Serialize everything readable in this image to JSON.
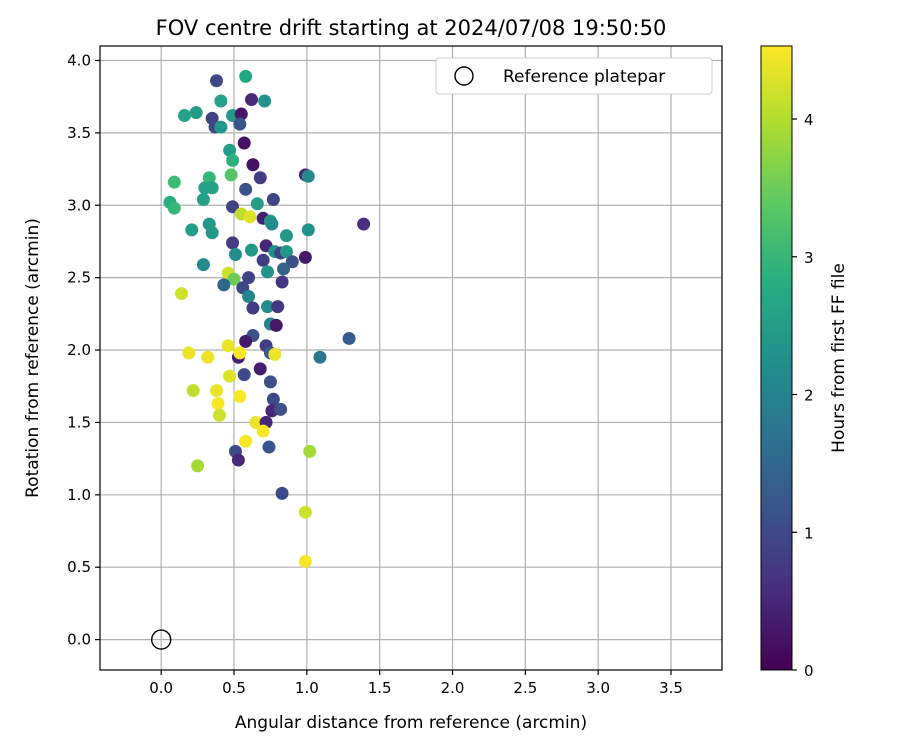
{
  "chart_data": {
    "type": "scatter",
    "title": "FOV centre drift starting at 2024/07/08 19:50:50",
    "xlabel": "Angular distance from reference (arcmin)",
    "ylabel": "Rotation from reference (arcmin)",
    "xlim": [
      -0.42,
      3.85
    ],
    "ylim": [
      -0.21,
      4.1
    ],
    "grid": true,
    "x_ticks": [
      "0.0",
      "0.5",
      "1.0",
      "1.5",
      "2.0",
      "2.5",
      "3.0",
      "3.5"
    ],
    "y_ticks": [
      "0.0",
      "0.5",
      "1.0",
      "1.5",
      "2.0",
      "2.5",
      "3.0",
      "3.5",
      "4.0"
    ],
    "legend": {
      "position": "top-right",
      "label": "Reference platepar"
    },
    "reference_point": {
      "x": 0.0,
      "y": 0.0,
      "label": "Reference platepar"
    },
    "colorbar": {
      "label": "Hours from first FF file",
      "range": [
        0,
        4.53
      ],
      "ticks": [
        "0",
        "1",
        "2",
        "3",
        "4"
      ],
      "colormap": "viridis"
    },
    "points": [
      {
        "x": 0.38,
        "y": 3.86,
        "t": 1.0
      },
      {
        "x": 0.58,
        "y": 3.89,
        "t": 2.7
      },
      {
        "x": 0.71,
        "y": 3.72,
        "t": 2.3
      },
      {
        "x": 0.41,
        "y": 3.72,
        "t": 2.6
      },
      {
        "x": 0.16,
        "y": 3.62,
        "t": 2.6
      },
      {
        "x": 0.24,
        "y": 3.64,
        "t": 2.5
      },
      {
        "x": 0.49,
        "y": 3.62,
        "t": 2.4
      },
      {
        "x": 0.55,
        "y": 3.63,
        "t": 0.3
      },
      {
        "x": 0.62,
        "y": 3.73,
        "t": 0.5
      },
      {
        "x": 0.35,
        "y": 3.6,
        "t": 0.9
      },
      {
        "x": 0.37,
        "y": 3.54,
        "t": 1.0
      },
      {
        "x": 0.41,
        "y": 3.54,
        "t": 2.4
      },
      {
        "x": 0.54,
        "y": 3.56,
        "t": 1.2
      },
      {
        "x": 0.57,
        "y": 3.43,
        "t": 0.2
      },
      {
        "x": 0.47,
        "y": 3.38,
        "t": 2.5
      },
      {
        "x": 0.49,
        "y": 3.31,
        "t": 2.9
      },
      {
        "x": 0.63,
        "y": 3.28,
        "t": 0.2
      },
      {
        "x": 0.48,
        "y": 3.21,
        "t": 3.3
      },
      {
        "x": 0.68,
        "y": 3.19,
        "t": 0.8
      },
      {
        "x": 0.99,
        "y": 3.21,
        "t": 0.5
      },
      {
        "x": 1.01,
        "y": 3.2,
        "t": 2.1
      },
      {
        "x": 0.09,
        "y": 3.16,
        "t": 3.1
      },
      {
        "x": 0.33,
        "y": 3.19,
        "t": 3.0
      },
      {
        "x": 0.3,
        "y": 3.12,
        "t": 2.6
      },
      {
        "x": 0.35,
        "y": 3.12,
        "t": 2.6
      },
      {
        "x": 0.58,
        "y": 3.11,
        "t": 1.1
      },
      {
        "x": 0.29,
        "y": 3.04,
        "t": 2.6
      },
      {
        "x": 0.06,
        "y": 3.02,
        "t": 2.8
      },
      {
        "x": 0.09,
        "y": 2.98,
        "t": 3.0
      },
      {
        "x": 0.49,
        "y": 2.99,
        "t": 0.9
      },
      {
        "x": 0.77,
        "y": 3.04,
        "t": 0.9
      },
      {
        "x": 0.66,
        "y": 3.01,
        "t": 2.5
      },
      {
        "x": 0.55,
        "y": 2.94,
        "t": 4.1
      },
      {
        "x": 0.61,
        "y": 2.92,
        "t": 4.3
      },
      {
        "x": 0.7,
        "y": 2.91,
        "t": 0.4
      },
      {
        "x": 0.75,
        "y": 2.89,
        "t": 2.4
      },
      {
        "x": 0.76,
        "y": 2.87,
        "t": 2.2
      },
      {
        "x": 1.01,
        "y": 2.83,
        "t": 2.3
      },
      {
        "x": 1.39,
        "y": 2.87,
        "t": 0.6
      },
      {
        "x": 0.33,
        "y": 2.87,
        "t": 2.4
      },
      {
        "x": 0.21,
        "y": 2.83,
        "t": 2.5
      },
      {
        "x": 0.35,
        "y": 2.81,
        "t": 2.4
      },
      {
        "x": 0.86,
        "y": 2.79,
        "t": 2.4
      },
      {
        "x": 0.49,
        "y": 2.74,
        "t": 0.8
      },
      {
        "x": 0.72,
        "y": 2.72,
        "t": 0.5
      },
      {
        "x": 0.62,
        "y": 2.69,
        "t": 2.4
      },
      {
        "x": 0.78,
        "y": 2.68,
        "t": 2.3
      },
      {
        "x": 0.82,
        "y": 2.67,
        "t": 0.9
      },
      {
        "x": 0.86,
        "y": 2.68,
        "t": 2.4
      },
      {
        "x": 0.99,
        "y": 2.64,
        "t": 0.3
      },
      {
        "x": 0.51,
        "y": 2.66,
        "t": 2.2
      },
      {
        "x": 0.7,
        "y": 2.62,
        "t": 0.8
      },
      {
        "x": 0.9,
        "y": 2.61,
        "t": 1.1
      },
      {
        "x": 0.29,
        "y": 2.59,
        "t": 2.1
      },
      {
        "x": 0.84,
        "y": 2.56,
        "t": 1.4
      },
      {
        "x": 0.73,
        "y": 2.54,
        "t": 2.3
      },
      {
        "x": 0.46,
        "y": 2.53,
        "t": 4.2
      },
      {
        "x": 0.6,
        "y": 2.5,
        "t": 0.9
      },
      {
        "x": 0.5,
        "y": 2.49,
        "t": 3.5
      },
      {
        "x": 0.83,
        "y": 2.47,
        "t": 0.7
      },
      {
        "x": 0.43,
        "y": 2.45,
        "t": 1.5
      },
      {
        "x": 0.56,
        "y": 2.43,
        "t": 1.0
      },
      {
        "x": 0.14,
        "y": 2.39,
        "t": 4.2
      },
      {
        "x": 0.6,
        "y": 2.37,
        "t": 2.0
      },
      {
        "x": 0.73,
        "y": 2.3,
        "t": 2.2
      },
      {
        "x": 0.8,
        "y": 2.3,
        "t": 0.7
      },
      {
        "x": 0.63,
        "y": 2.29,
        "t": 0.8
      },
      {
        "x": 0.75,
        "y": 2.18,
        "t": 2.0
      },
      {
        "x": 0.79,
        "y": 2.17,
        "t": 0.3
      },
      {
        "x": 0.63,
        "y": 2.1,
        "t": 1.1
      },
      {
        "x": 1.29,
        "y": 2.08,
        "t": 1.3
      },
      {
        "x": 0.58,
        "y": 2.06,
        "t": 0.3
      },
      {
        "x": 0.46,
        "y": 2.03,
        "t": 4.4
      },
      {
        "x": 0.72,
        "y": 2.03,
        "t": 0.8
      },
      {
        "x": 0.19,
        "y": 1.98,
        "t": 4.4
      },
      {
        "x": 0.32,
        "y": 1.95,
        "t": 4.4
      },
      {
        "x": 0.53,
        "y": 1.95,
        "t": 0.4
      },
      {
        "x": 0.54,
        "y": 1.98,
        "t": 4.5
      },
      {
        "x": 0.75,
        "y": 1.98,
        "t": 1.2
      },
      {
        "x": 0.78,
        "y": 1.97,
        "t": 4.4
      },
      {
        "x": 1.09,
        "y": 1.95,
        "t": 1.8
      },
      {
        "x": 0.68,
        "y": 1.87,
        "t": 0.4
      },
      {
        "x": 0.57,
        "y": 1.83,
        "t": 1.0
      },
      {
        "x": 0.47,
        "y": 1.82,
        "t": 4.3
      },
      {
        "x": 0.75,
        "y": 1.78,
        "t": 1.1
      },
      {
        "x": 0.22,
        "y": 1.72,
        "t": 4.1
      },
      {
        "x": 0.38,
        "y": 1.72,
        "t": 4.4
      },
      {
        "x": 0.54,
        "y": 1.68,
        "t": 4.5
      },
      {
        "x": 0.77,
        "y": 1.66,
        "t": 1.0
      },
      {
        "x": 0.39,
        "y": 1.63,
        "t": 4.5
      },
      {
        "x": 0.76,
        "y": 1.58,
        "t": 0.5
      },
      {
        "x": 0.82,
        "y": 1.59,
        "t": 1.1
      },
      {
        "x": 0.4,
        "y": 1.55,
        "t": 4.2
      },
      {
        "x": 0.65,
        "y": 1.5,
        "t": 4.4
      },
      {
        "x": 0.72,
        "y": 1.5,
        "t": 0.5
      },
      {
        "x": 0.7,
        "y": 1.44,
        "t": 4.5
      },
      {
        "x": 0.58,
        "y": 1.37,
        "t": 4.5
      },
      {
        "x": 0.74,
        "y": 1.33,
        "t": 1.2
      },
      {
        "x": 0.51,
        "y": 1.3,
        "t": 1.0
      },
      {
        "x": 1.02,
        "y": 1.3,
        "t": 3.9
      },
      {
        "x": 0.53,
        "y": 1.24,
        "t": 0.5
      },
      {
        "x": 0.25,
        "y": 1.2,
        "t": 3.9
      },
      {
        "x": 0.83,
        "y": 1.01,
        "t": 1.0
      },
      {
        "x": 0.99,
        "y": 0.88,
        "t": 4.2
      },
      {
        "x": 0.99,
        "y": 0.54,
        "t": 4.5
      }
    ]
  }
}
